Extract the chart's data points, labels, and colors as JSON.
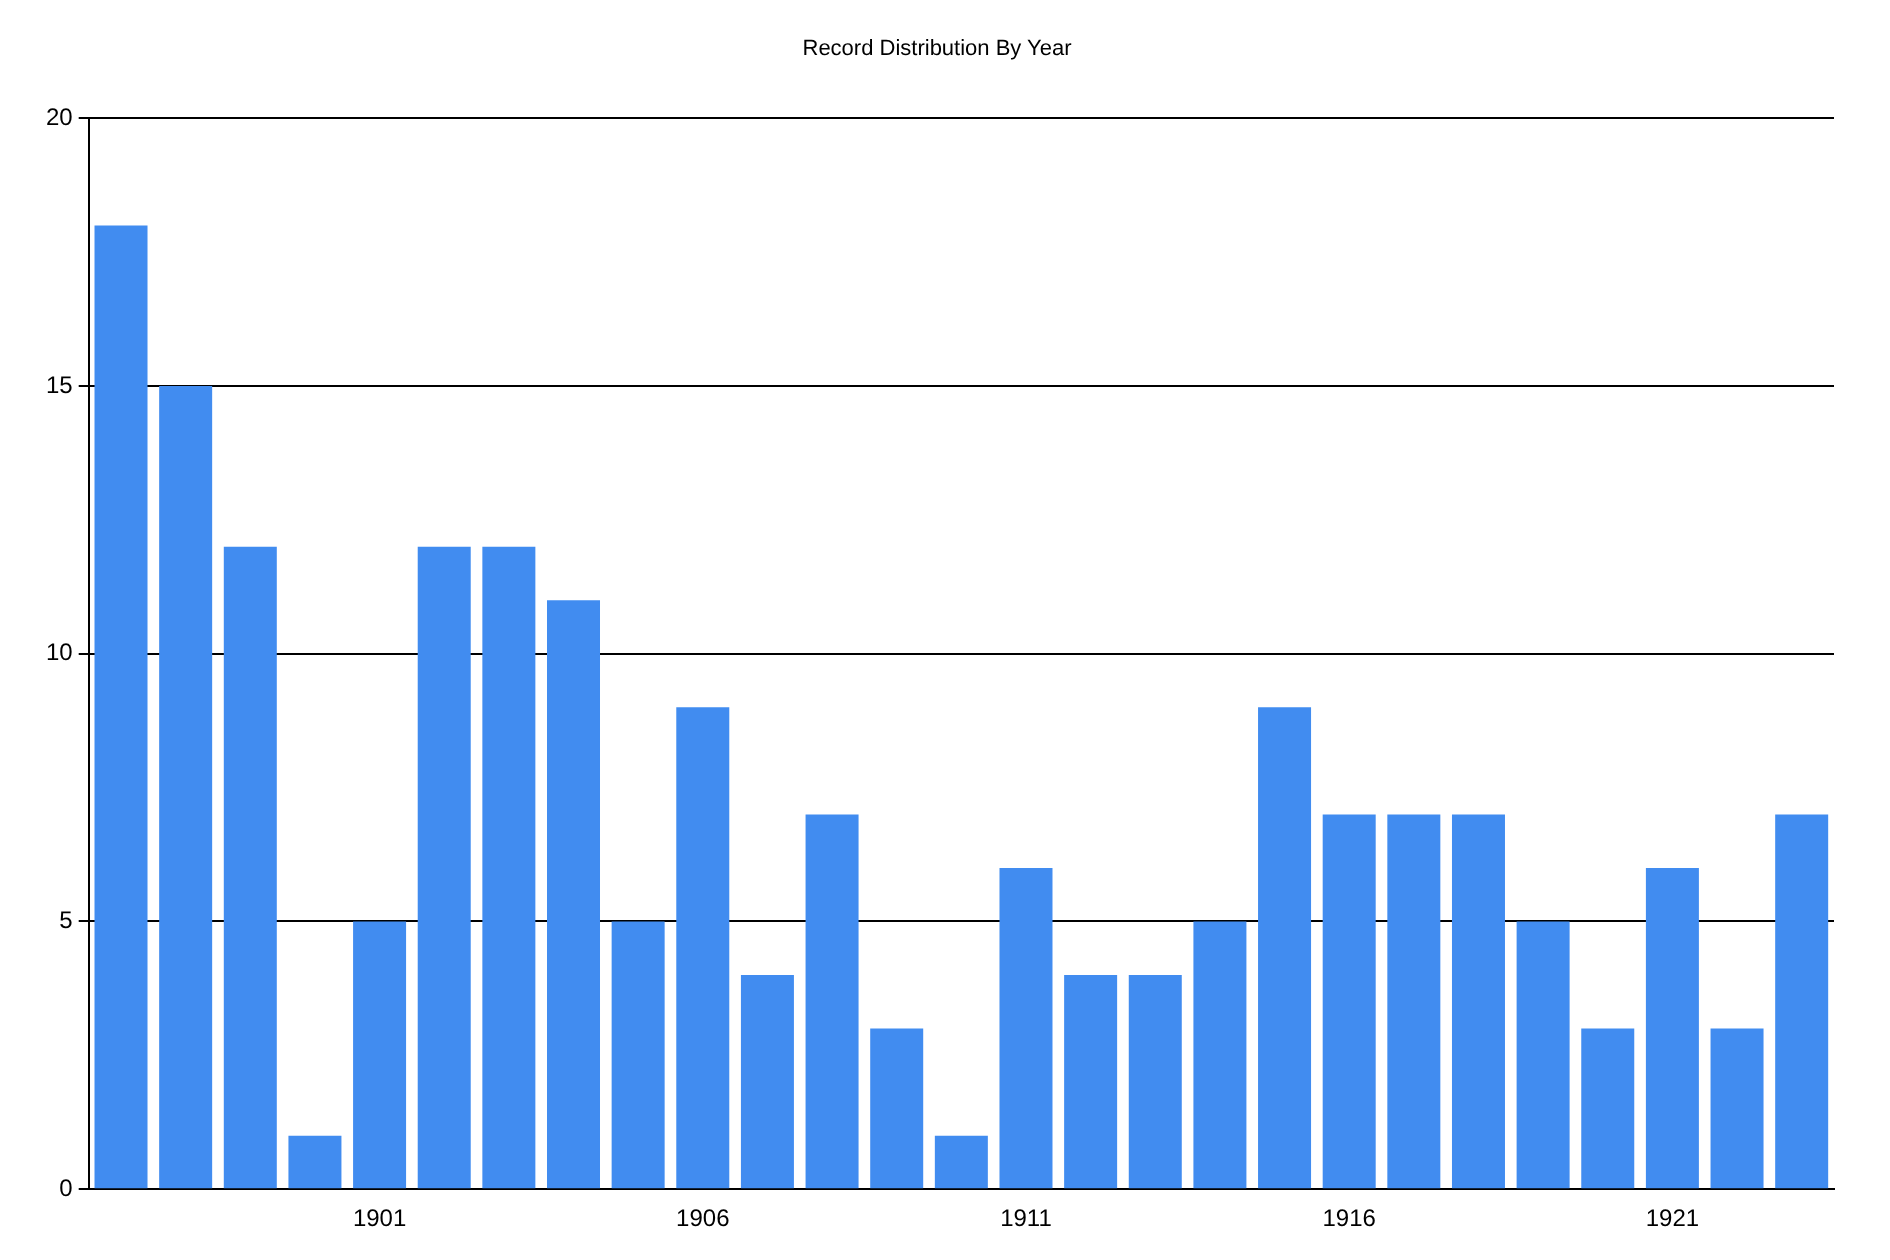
{
  "chart_data": {
    "type": "bar",
    "title": "Record Distribution By Year",
    "categories": [
      null,
      null,
      null,
      null,
      "1901",
      null,
      null,
      null,
      null,
      "1906",
      null,
      null,
      null,
      null,
      "1911",
      null,
      null,
      null,
      null,
      "1916",
      null,
      null,
      null,
      null,
      "1921",
      null,
      null
    ],
    "values": [
      18,
      15,
      12,
      1,
      5,
      12,
      12,
      11,
      5,
      9,
      4,
      7,
      3,
      1,
      6,
      4,
      4,
      5,
      9,
      7,
      7,
      7,
      5,
      3,
      6,
      3,
      7
    ],
    "color": "#418cf0",
    "ylim": [
      0,
      20
    ],
    "yticks": [
      0,
      5,
      10,
      15,
      20
    ],
    "grid": "y",
    "legend": false
  }
}
